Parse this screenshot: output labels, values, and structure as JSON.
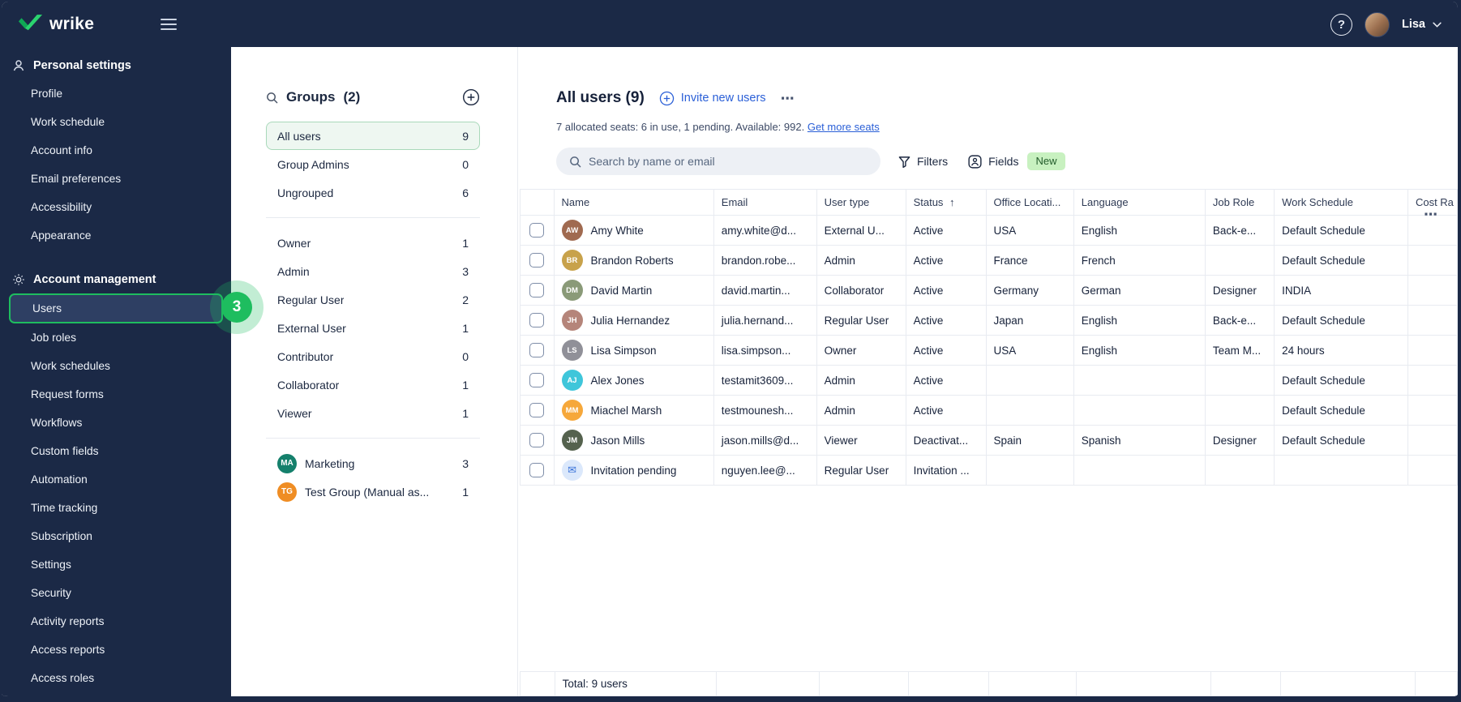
{
  "topbar": {
    "brand": "wrike",
    "user_name": "Lisa",
    "help_label": "?"
  },
  "sidebar": {
    "annotation_badge": "3",
    "sections": [
      {
        "title": "Personal settings",
        "icon": "person-icon",
        "items": [
          {
            "label": "Profile"
          },
          {
            "label": "Work schedule"
          },
          {
            "label": "Account info"
          },
          {
            "label": "Email preferences"
          },
          {
            "label": "Accessibility"
          },
          {
            "label": "Appearance"
          }
        ]
      },
      {
        "title": "Account management",
        "icon": "gear-icon",
        "items": [
          {
            "label": "Users",
            "selected": true
          },
          {
            "label": "Job roles"
          },
          {
            "label": "Work schedules"
          },
          {
            "label": "Request forms"
          },
          {
            "label": "Workflows"
          },
          {
            "label": "Custom fields"
          },
          {
            "label": "Automation"
          },
          {
            "label": "Time tracking"
          },
          {
            "label": "Subscription"
          },
          {
            "label": "Settings"
          },
          {
            "label": "Security"
          },
          {
            "label": "Activity reports"
          },
          {
            "label": "Access reports"
          },
          {
            "label": "Access roles"
          }
        ]
      }
    ]
  },
  "groups": {
    "title": "Groups",
    "count": "(2)",
    "items": [
      {
        "label": "All users",
        "count": "9",
        "selected": true
      },
      {
        "label": "Group Admins",
        "count": "0"
      },
      {
        "label": "Ungrouped",
        "count": "6",
        "divider_after": true
      },
      {
        "label": "Owner",
        "count": "1"
      },
      {
        "label": "Admin",
        "count": "3"
      },
      {
        "label": "Regular User",
        "count": "2"
      },
      {
        "label": "External User",
        "count": "1"
      },
      {
        "label": "Contributor",
        "count": "0"
      },
      {
        "label": "Collaborator",
        "count": "1"
      },
      {
        "label": "Viewer",
        "count": "1",
        "divider_after": true
      },
      {
        "label": "Marketing",
        "count": "3",
        "badge": {
          "text": "MA",
          "color": "#15806c"
        }
      },
      {
        "label": "Test Group (Manual as...",
        "count": "1",
        "badge": {
          "text": "TG",
          "color": "#ef8d24"
        }
      }
    ]
  },
  "main": {
    "title": "All users",
    "title_count": "(9)",
    "invite_label": "Invite new users",
    "more_label": "⋯",
    "seats_text": "7 allocated seats: 6 in use, 1 pending. Available: 992.",
    "seats_link": "Get more seats",
    "search_placeholder": "Search by name or email",
    "filters_label": "Filters",
    "fields_label": "Fields",
    "new_badge": "New",
    "more_right_label": "⋯"
  },
  "table": {
    "columns": [
      "Name",
      "Email",
      "User type",
      "Status",
      "Office Locati...",
      "Language",
      "Job Role",
      "Work Schedule",
      "Cost Ra"
    ],
    "sorted_column": "Status",
    "sort_arrow": "↑",
    "rows": [
      {
        "name": "Amy White",
        "avatar": {
          "kind": "photo",
          "initials": "AW",
          "color": "#a06a50"
        },
        "email": "amy.white@d...",
        "user_type": "External U...",
        "status": "Active",
        "office_location": "USA",
        "language": "English",
        "job_role": "Back-e...",
        "work_schedule": "Default Schedule",
        "cost_rate": ""
      },
      {
        "name": "Brandon Roberts",
        "avatar": {
          "kind": "photo",
          "initials": "BR",
          "color": "#c8a24b"
        },
        "email": "brandon.robe...",
        "user_type": "Admin",
        "status": "Active",
        "office_location": "France",
        "language": "French",
        "job_role": "",
        "work_schedule": "Default Schedule",
        "cost_rate": ""
      },
      {
        "name": "David Martin",
        "avatar": {
          "kind": "photo",
          "initials": "DM",
          "color": "#8a9a78"
        },
        "email": "david.martin...",
        "user_type": "Collaborator",
        "status": "Active",
        "office_location": "Germany",
        "language": "German",
        "job_role": "Designer",
        "work_schedule": "INDIA",
        "cost_rate": ""
      },
      {
        "name": "Julia Hernandez",
        "avatar": {
          "kind": "photo",
          "initials": "JH",
          "color": "#b5857a"
        },
        "email": "julia.hernand...",
        "user_type": "Regular User",
        "status": "Active",
        "office_location": "Japan",
        "language": "English",
        "job_role": "Back-e...",
        "work_schedule": "Default Schedule",
        "cost_rate": ""
      },
      {
        "name": "Lisa Simpson",
        "avatar": {
          "kind": "photo",
          "initials": "LS",
          "color": "#909098"
        },
        "email": "lisa.simpson...",
        "user_type": "Owner",
        "status": "Active",
        "office_location": "USA",
        "language": "English",
        "job_role": "Team M...",
        "work_schedule": "24 hours",
        "cost_rate": ""
      },
      {
        "name": "Alex Jones",
        "avatar": {
          "kind": "initials",
          "initials": "AJ",
          "color": "#3fc6da"
        },
        "email": "testamit3609...",
        "user_type": "Admin",
        "status": "Active",
        "office_location": "",
        "language": "",
        "job_role": "",
        "work_schedule": "Default Schedule",
        "cost_rate": ""
      },
      {
        "name": "Miachel Marsh",
        "avatar": {
          "kind": "initials",
          "initials": "MM",
          "color": "#f6a83b"
        },
        "email": "testmounesh...",
        "user_type": "Admin",
        "status": "Active",
        "office_location": "",
        "language": "",
        "job_role": "",
        "work_schedule": "Default Schedule",
        "cost_rate": ""
      },
      {
        "name": "Jason Mills",
        "avatar": {
          "kind": "photo",
          "initials": "JM",
          "color": "#55624e"
        },
        "email": "jason.mills@d...",
        "user_type": "Viewer",
        "status": "Deactivat...",
        "office_location": "Spain",
        "language": "Spanish",
        "job_role": "Designer",
        "work_schedule": "Default Schedule",
        "cost_rate": ""
      },
      {
        "name": "Invitation pending",
        "avatar": {
          "kind": "invite",
          "initials": "",
          "color": "#dbe8fb"
        },
        "email": "nguyen.lee@...",
        "user_type": "Regular User",
        "status": "Invitation ...",
        "office_location": "",
        "language": "",
        "job_role": "",
        "work_schedule": "",
        "cost_rate": ""
      }
    ],
    "footer_total": "Total: 9 users"
  }
}
